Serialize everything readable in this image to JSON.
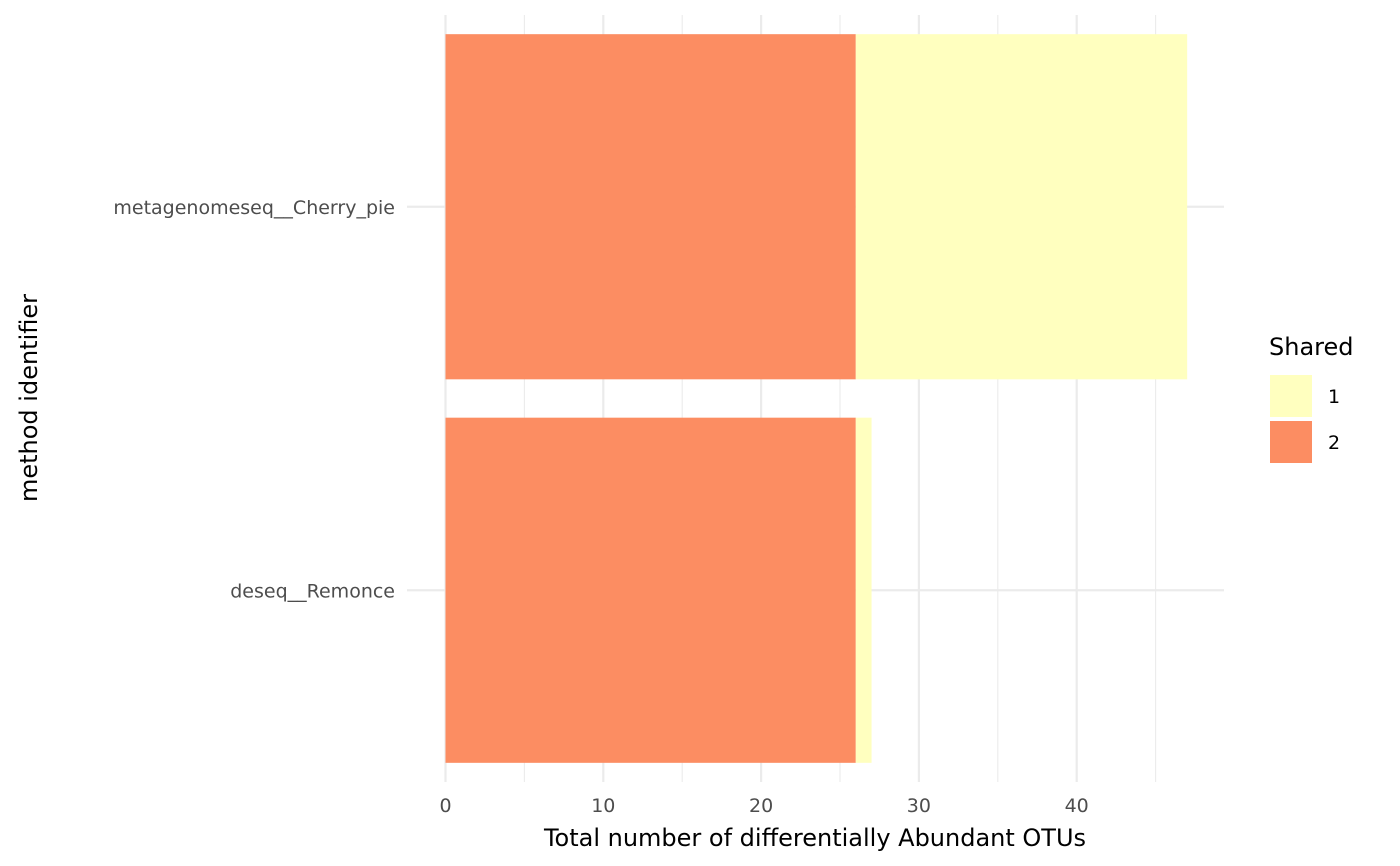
{
  "chart_data": {
    "type": "bar",
    "orientation": "horizontal",
    "stacked": true,
    "categories": [
      "metagenomeseq__Cherry_pie",
      "deseq__Remonce"
    ],
    "series": [
      {
        "name": "2",
        "color": "#fc8d62",
        "values": [
          26,
          26
        ]
      },
      {
        "name": "1",
        "color": "#ffffbf",
        "values": [
          21,
          1
        ]
      }
    ],
    "xlabel": "Total number of differentially Abundant OTUs",
    "ylabel": "method identifier",
    "xlim": [
      0,
      49.4
    ],
    "xticks": [
      0,
      10,
      20,
      30,
      40
    ],
    "grid": true,
    "legend": {
      "title": "Shared",
      "placement": "right",
      "entries": [
        {
          "label": "1",
          "color": "#ffffbf"
        },
        {
          "label": "2",
          "color": "#fc8d62"
        }
      ]
    }
  }
}
